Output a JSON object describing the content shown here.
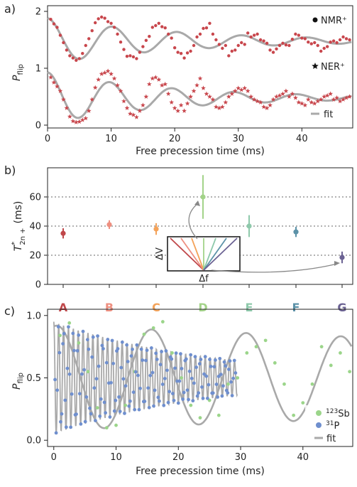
{
  "chart_data": [
    {
      "panel": "a)",
      "type": "scatter",
      "xlabel": "Free precession time (ms)",
      "ylabel": "P",
      "ylabel_sub": "flip",
      "xlim": [
        0,
        48
      ],
      "ylim": [
        -0.05,
        2.1
      ],
      "xticks": [
        "0",
        "10",
        "20",
        "30",
        "40"
      ],
      "yticks": [
        "0",
        "1",
        "2"
      ],
      "legend": [
        {
          "marker": "circle",
          "label": "NMR⁺"
        },
        {
          "marker": "star",
          "label": "NER⁺"
        },
        {
          "marker": "line",
          "label": "fit"
        }
      ],
      "colors": {
        "points": "#c8464c",
        "fit": "#a9a9a9"
      },
      "series": [
        {
          "name": "NMR⁺",
          "marker": "circle",
          "x": [
            0.5,
            1,
            1.5,
            2,
            2.5,
            3,
            3.5,
            4,
            4.5,
            5,
            5.5,
            6,
            6.5,
            7,
            7.5,
            8,
            8.5,
            9,
            9.5,
            10,
            10.5,
            11,
            11.5,
            12,
            12.5,
            13,
            13.5,
            14,
            14.5,
            15,
            15.5,
            16,
            16.5,
            17,
            17.5,
            18,
            18.5,
            19,
            19.5,
            20,
            20.5,
            21,
            21.5,
            22,
            22.5,
            23,
            23.5,
            24,
            24.5,
            25,
            25.5,
            26,
            26.5,
            27,
            27.5,
            28,
            28.5,
            29,
            29.5,
            30,
            30.5,
            31,
            31.5,
            32,
            32.5,
            33,
            33.5,
            34,
            34.5,
            35,
            35.5,
            36,
            36.5,
            37,
            37.5,
            38,
            38.5,
            39,
            39.5,
            40,
            40.5,
            41,
            41.5,
            42,
            42.5,
            43,
            43.5,
            44,
            44.5,
            45,
            45.5,
            46,
            46.5,
            47,
            47.5
          ],
          "y": [
            1.86,
            1.78,
            1.72,
            1.58,
            1.45,
            1.32,
            1.22,
            1.18,
            1.14,
            1.17,
            1.26,
            1.4,
            1.52,
            1.66,
            1.8,
            1.87,
            1.9,
            1.88,
            1.82,
            1.79,
            1.72,
            1.6,
            1.46,
            1.33,
            1.21,
            1.22,
            1.2,
            1.17,
            1.28,
            1.38,
            1.49,
            1.56,
            1.72,
            1.75,
            1.79,
            1.73,
            1.71,
            1.6,
            1.53,
            1.36,
            1.28,
            1.26,
            1.18,
            1.27,
            1.3,
            1.4,
            1.55,
            1.6,
            1.7,
            1.71,
            1.79,
            1.6,
            1.5,
            1.42,
            1.35,
            1.4,
            1.22,
            1.3,
            1.32,
            1.4,
            1.45,
            1.42,
            1.62,
            1.55,
            1.58,
            1.6,
            1.5,
            1.48,
            1.44,
            1.32,
            1.28,
            1.34,
            1.4,
            1.44,
            1.41,
            1.4,
            1.51,
            1.6,
            1.58,
            1.53,
            1.52,
            1.46,
            1.43,
            1.45,
            1.4,
            1.3,
            1.35,
            1.38,
            1.46,
            1.48,
            1.45,
            1.5,
            1.55,
            1.52,
            1.5
          ]
        },
        {
          "name": "NER⁺",
          "marker": "star",
          "x": [
            0.5,
            1,
            1.5,
            2,
            2.5,
            3,
            3.5,
            4,
            4.5,
            5,
            5.5,
            6,
            6.5,
            7,
            7.5,
            8,
            8.5,
            9,
            9.5,
            10,
            10.5,
            11,
            11.5,
            12,
            12.5,
            13,
            13.5,
            14,
            14.5,
            15,
            15.5,
            16,
            16.5,
            17,
            17.5,
            18,
            18.5,
            19,
            19.5,
            20,
            20.5,
            21,
            21.5,
            22,
            22.5,
            23,
            23.5,
            24,
            24.5,
            25,
            25.5,
            26,
            26.5,
            27,
            27.5,
            28,
            28.5,
            29,
            29.5,
            30,
            30.5,
            31,
            31.5,
            32,
            32.5,
            33,
            33.5,
            34,
            34.5,
            35,
            35.5,
            36,
            36.5,
            37,
            37.5,
            38,
            38.5,
            39,
            39.5,
            40,
            40.5,
            41,
            41.5,
            42,
            42.5,
            43,
            43.5,
            44,
            44.5,
            45,
            45.5,
            46,
            46.5,
            47,
            47.5
          ],
          "y": [
            0.84,
            0.75,
            0.68,
            0.6,
            0.45,
            0.3,
            0.15,
            0.07,
            0.05,
            0.06,
            0.09,
            0.12,
            0.25,
            0.45,
            0.66,
            0.8,
            0.9,
            0.92,
            0.95,
            0.9,
            0.82,
            0.7,
            0.6,
            0.42,
            0.3,
            0.2,
            0.18,
            0.14,
            0.25,
            0.35,
            0.5,
            0.72,
            0.82,
            0.84,
            0.8,
            0.7,
            0.72,
            0.55,
            0.4,
            0.3,
            0.25,
            0.35,
            0.25,
            0.38,
            0.5,
            0.6,
            0.7,
            0.82,
            0.65,
            0.55,
            0.5,
            0.45,
            0.32,
            0.3,
            0.32,
            0.4,
            0.5,
            0.55,
            0.6,
            0.65,
            0.62,
            0.65,
            0.6,
            0.5,
            0.45,
            0.42,
            0.4,
            0.32,
            0.3,
            0.35,
            0.45,
            0.5,
            0.52,
            0.55,
            0.6,
            0.5,
            0.55,
            0.48,
            0.4,
            0.38,
            0.35,
            0.45,
            0.4,
            0.38,
            0.42,
            0.45,
            0.5,
            0.52,
            0.55,
            0.45,
            0.48,
            0.42,
            0.45,
            0.48,
            0.5
          ]
        }
      ]
    },
    {
      "panel": "b)",
      "type": "errorbar",
      "ylabel": "T",
      "ylabel_sup": "*",
      "ylabel_sub": "2n +",
      "ylabel_unit": "(ms)",
      "ylim": [
        0,
        80
      ],
      "yticks": [
        "0",
        "20",
        "40",
        "60"
      ],
      "gridlines_y": [
        20,
        40,
        60
      ],
      "categories": [
        "A",
        "B",
        "C",
        "D",
        "E",
        "F",
        "G"
      ],
      "values": [
        35,
        41,
        38,
        60,
        40,
        36,
        18.5
      ],
      "errors": [
        3.5,
        3,
        4,
        15,
        7.5,
        3.5,
        4
      ],
      "colors": [
        "#c0474a",
        "#ee8f80",
        "#f4a35a",
        "#a3d389",
        "#8ec9ab",
        "#5c92a8",
        "#6b6293"
      ],
      "inset": {
        "ylabel": "ΔV",
        "xlabel": "Δf"
      }
    },
    {
      "panel": "c)",
      "type": "scatter",
      "xlabel": "Free precession time (ms)",
      "ylabel": "P",
      "ylabel_sub": "flip",
      "xlim": [
        -1,
        48
      ],
      "ylim": [
        -0.05,
        1.05
      ],
      "xticks": [
        "0",
        "10",
        "20",
        "30",
        "40"
      ],
      "yticks": [
        "0.0",
        "0.5",
        "1.0"
      ],
      "legend": [
        {
          "marker": "circle",
          "color": "#9bd58a",
          "label_sup": "123",
          "label_text": "Sb"
        },
        {
          "marker": "circle",
          "color": "#6f8fce",
          "label_sup": "31",
          "label_text": "P"
        },
        {
          "marker": "line",
          "color": "#a9a9a9",
          "label_text": "fit"
        }
      ],
      "colors": {
        "sb": "#9bd58a",
        "p": "#6f8fce",
        "fit": "#a9a9a9"
      },
      "series": [
        {
          "name": "123Sb",
          "x": [
            1,
            2.5,
            4,
            5.5,
            7,
            8.5,
            10,
            11.5,
            13,
            14.5,
            16,
            17.5,
            19,
            20.5,
            22,
            23.5,
            25,
            26.5,
            28,
            29.5,
            31,
            32.5,
            34,
            35.5,
            37,
            38.5,
            40,
            41.5,
            43,
            44.5,
            46,
            47.5
          ],
          "y": [
            0.84,
            0.94,
            0.78,
            0.55,
            0.26,
            0.1,
            0.12,
            0.28,
            0.55,
            0.85,
            0.9,
            0.95,
            0.7,
            0.5,
            0.28,
            0.18,
            0.32,
            0.2,
            0.45,
            0.5,
            0.7,
            0.75,
            0.8,
            0.62,
            0.45,
            0.2,
            0.3,
            0.45,
            0.75,
            0.6,
            0.7,
            0.55
          ]
        },
        {
          "name": "31P",
          "x_start": 0.2,
          "x_step": 0.18,
          "count": 162,
          "freq": 2.7,
          "amp0": 0.45,
          "decay_tau": 25,
          "offset": 0.5
        }
      ]
    }
  ]
}
